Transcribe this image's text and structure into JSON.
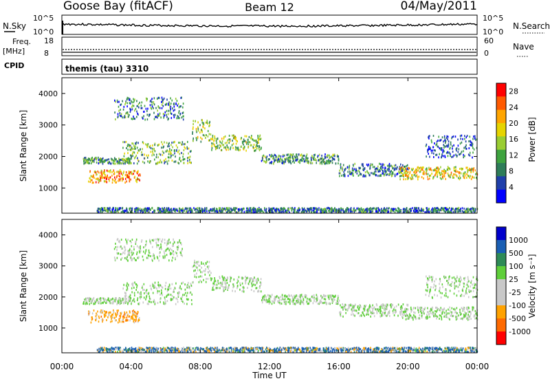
{
  "header": {
    "station": "Goose Bay (fitACF)",
    "beam": "Beam 12",
    "date": "04/May/2011"
  },
  "noise_panel": {
    "left_label": "N.Sky",
    "right_label": "N.Search",
    "left_ticks": [
      "10^5",
      "10^0"
    ],
    "right_ticks": [
      "10^5",
      "10^0"
    ]
  },
  "freq_panel": {
    "label_line1": "Freq.",
    "label_line2": "[MHz]",
    "right_label": "Nave",
    "left_ticks": [
      "18",
      "8"
    ],
    "right_ticks": [
      "60",
      "0"
    ]
  },
  "cpid": {
    "label": "CPID",
    "value": "themis (tau) 3310"
  },
  "x_axis": {
    "label": "Time UT",
    "ticks": [
      "00:00",
      "04:00",
      "08:00",
      "12:00",
      "16:00",
      "20:00",
      "00:00"
    ]
  },
  "colors": {
    "power_scale": [
      "#0000ff",
      "#1f3faa",
      "#2e7d59",
      "#3ea33f",
      "#9acd32",
      "#e6d400",
      "#ffa500",
      "#ff5a00",
      "#ff0000"
    ],
    "velocity_scale": [
      "#ff0000",
      "#ff6a00",
      "#ffa200",
      "#c8c8c8",
      "#c8c8c8",
      "#5fcf3a",
      "#2e8b57",
      "#1a5fb4",
      "#0000cc"
    ]
  },
  "chart_data": [
    {
      "type": "heatmap",
      "name_key": "power",
      "ylabel": "Slant Range [km]",
      "xlabel": "",
      "yticks": [
        1000,
        2000,
        3000,
        4000
      ],
      "ylim": [
        200,
        4500
      ],
      "xlim_hours": [
        0,
        24
      ],
      "colorbar": {
        "label": "Power [dB]",
        "ticks": [
          "4",
          "8",
          "12",
          "16",
          "20",
          "24",
          "28"
        ],
        "range": [
          0,
          30
        ]
      },
      "bands": [
        {
          "h0": 1.2,
          "h1": 4.0,
          "r0": 1800,
          "r1": 2000,
          "v": 10
        },
        {
          "h0": 1.5,
          "h1": 4.5,
          "r0": 1200,
          "r1": 1600,
          "v": 22
        },
        {
          "h0": 3.5,
          "h1": 7.5,
          "r0": 1800,
          "r1": 2500,
          "v": 12
        },
        {
          "h0": 7.5,
          "h1": 8.6,
          "r0": 2500,
          "r1": 3200,
          "v": 14
        },
        {
          "h0": 8.6,
          "h1": 11.5,
          "r0": 2200,
          "r1": 2700,
          "v": 14
        },
        {
          "h0": 11.5,
          "h1": 16.0,
          "r0": 1800,
          "r1": 2100,
          "v": 10
        },
        {
          "h0": 16.0,
          "h1": 20.0,
          "r0": 1400,
          "r1": 1800,
          "v": 8
        },
        {
          "h0": 19.5,
          "h1": 24.0,
          "r0": 1300,
          "r1": 1700,
          "v": 18
        },
        {
          "h0": 21.0,
          "h1": 24.0,
          "r0": 2000,
          "r1": 2700,
          "v": 6
        },
        {
          "h0": 3.0,
          "h1": 7.0,
          "r0": 3200,
          "r1": 3900,
          "v": 8
        },
        {
          "h0": 2.0,
          "h1": 24.0,
          "r0": 250,
          "r1": 400,
          "v": 8
        }
      ]
    },
    {
      "type": "heatmap",
      "name_key": "velocity",
      "ylabel": "Slant Range [km]",
      "xlabel": "Time UT",
      "yticks": [
        1000,
        2000,
        3000,
        4000
      ],
      "ylim": [
        200,
        4500
      ],
      "xlim_hours": [
        0,
        24
      ],
      "colorbar": {
        "label": "Velocity [m s⁻¹]",
        "ticks": [
          "1000",
          "500",
          "100",
          "25",
          "-25",
          "-100",
          "-500",
          "-1000"
        ],
        "range": [
          -1000,
          1000
        ]
      },
      "bands": [
        {
          "h0": 1.2,
          "h1": 4.0,
          "r0": 1800,
          "r1": 2000,
          "v": 0
        },
        {
          "h0": 1.5,
          "h1": 4.5,
          "r0": 1200,
          "r1": 1600,
          "v": -300
        },
        {
          "h0": 3.5,
          "h1": 7.5,
          "r0": 1800,
          "r1": 2500,
          "v": 0
        },
        {
          "h0": 7.5,
          "h1": 8.6,
          "r0": 2500,
          "r1": 3200,
          "v": 0
        },
        {
          "h0": 8.6,
          "h1": 11.5,
          "r0": 2200,
          "r1": 2700,
          "v": 0
        },
        {
          "h0": 11.5,
          "h1": 16.0,
          "r0": 1800,
          "r1": 2100,
          "v": 0
        },
        {
          "h0": 16.0,
          "h1": 20.0,
          "r0": 1400,
          "r1": 1800,
          "v": 0
        },
        {
          "h0": 19.5,
          "h1": 24.0,
          "r0": 1300,
          "r1": 1700,
          "v": 0
        },
        {
          "h0": 21.0,
          "h1": 24.0,
          "r0": 2000,
          "r1": 2700,
          "v": 0
        },
        {
          "h0": 3.0,
          "h1": 7.0,
          "r0": 3200,
          "r1": 3900,
          "v": 0
        },
        {
          "h0": 2.0,
          "h1": 24.0,
          "r0": 250,
          "r1": 400,
          "v": 100
        }
      ]
    }
  ]
}
